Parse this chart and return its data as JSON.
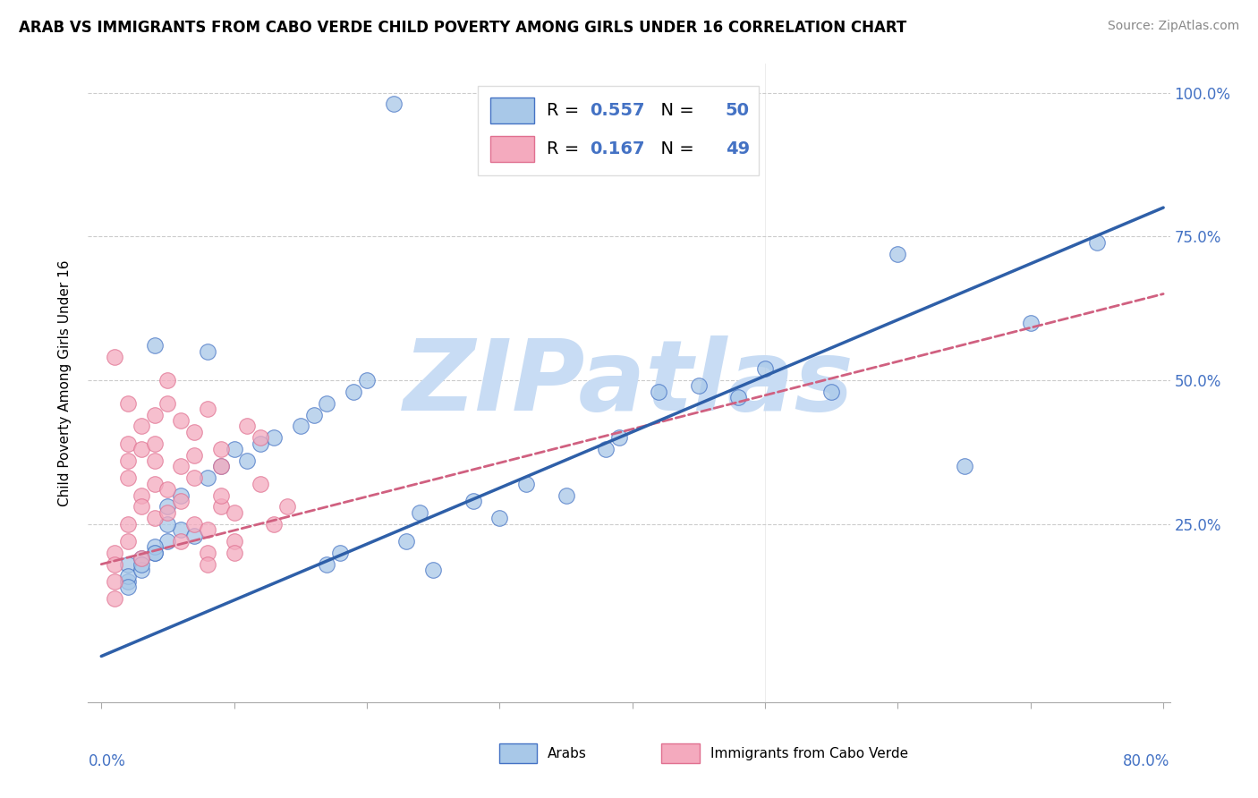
{
  "title": "ARAB VS IMMIGRANTS FROM CABO VERDE CHILD POVERTY AMONG GIRLS UNDER 16 CORRELATION CHART",
  "source": "Source: ZipAtlas.com",
  "ylabel": "Child Poverty Among Girls Under 16",
  "legend_label1": "Arabs",
  "legend_label2": "Immigrants from Cabo Verde",
  "R1": 0.557,
  "N1": 50,
  "R2": 0.167,
  "N2": 49,
  "color_blue": "#A8C8E8",
  "color_pink": "#F4AABE",
  "edge_blue": "#4472C4",
  "edge_pink": "#E07090",
  "line_blue": "#2E5FA8",
  "line_pink": "#D06080",
  "background": "#FFFFFF",
  "watermark_color": "#C8DCF4",
  "arab_x": [
    0.02,
    0.04,
    0.02,
    0.05,
    0.03,
    0.02,
    0.06,
    0.04,
    0.03,
    0.07,
    0.08,
    0.05,
    0.04,
    0.03,
    0.02,
    0.04,
    0.06,
    0.09,
    0.05,
    0.08,
    0.1,
    0.13,
    0.11,
    0.15,
    0.12,
    0.16,
    0.19,
    0.17,
    0.2,
    0.22,
    0.25,
    0.23,
    0.28,
    0.24,
    0.18,
    0.17,
    0.32,
    0.38,
    0.3,
    0.35,
    0.42,
    0.45,
    0.5,
    0.55,
    0.6,
    0.65,
    0.7,
    0.75,
    0.48,
    0.39
  ],
  "arab_y": [
    0.18,
    0.2,
    0.15,
    0.22,
    0.19,
    0.16,
    0.24,
    0.21,
    0.17,
    0.23,
    0.55,
    0.25,
    0.2,
    0.18,
    0.14,
    0.56,
    0.3,
    0.35,
    0.28,
    0.33,
    0.38,
    0.4,
    0.36,
    0.42,
    0.39,
    0.44,
    0.48,
    0.46,
    0.5,
    0.98,
    0.17,
    0.22,
    0.29,
    0.27,
    0.2,
    0.18,
    0.32,
    0.38,
    0.26,
    0.3,
    0.48,
    0.49,
    0.52,
    0.48,
    0.72,
    0.35,
    0.6,
    0.74,
    0.47,
    0.4
  ],
  "cabo_x": [
    0.01,
    0.01,
    0.02,
    0.01,
    0.02,
    0.02,
    0.01,
    0.02,
    0.03,
    0.01,
    0.02,
    0.03,
    0.03,
    0.02,
    0.03,
    0.04,
    0.04,
    0.03,
    0.04,
    0.04,
    0.05,
    0.04,
    0.05,
    0.05,
    0.06,
    0.05,
    0.06,
    0.06,
    0.07,
    0.06,
    0.07,
    0.07,
    0.08,
    0.07,
    0.08,
    0.08,
    0.09,
    0.08,
    0.09,
    0.09,
    0.1,
    0.09,
    0.1,
    0.11,
    0.1,
    0.12,
    0.13,
    0.12,
    0.14
  ],
  "cabo_y": [
    0.2,
    0.54,
    0.46,
    0.18,
    0.39,
    0.25,
    0.15,
    0.22,
    0.3,
    0.12,
    0.36,
    0.28,
    0.19,
    0.33,
    0.42,
    0.36,
    0.26,
    0.38,
    0.32,
    0.44,
    0.27,
    0.39,
    0.46,
    0.31,
    0.43,
    0.5,
    0.22,
    0.35,
    0.41,
    0.29,
    0.25,
    0.37,
    0.2,
    0.33,
    0.18,
    0.45,
    0.28,
    0.24,
    0.3,
    0.38,
    0.22,
    0.35,
    0.27,
    0.42,
    0.2,
    0.32,
    0.25,
    0.4,
    0.28
  ],
  "blue_line_x": [
    0.0,
    0.8
  ],
  "blue_line_y": [
    0.02,
    0.8
  ],
  "pink_line_x": [
    0.0,
    0.8
  ],
  "pink_line_y": [
    0.18,
    0.65
  ],
  "xmin": 0.0,
  "xmax": 0.8,
  "ymin": 0.0,
  "ymax": 1.05,
  "xticks": [
    0.0,
    0.1,
    0.2,
    0.3,
    0.4,
    0.5,
    0.6,
    0.7,
    0.8
  ],
  "ytick_vals": [
    0.25,
    0.5,
    0.75,
    1.0
  ],
  "ytick_labels": [
    "25.0%",
    "50.0%",
    "75.0%",
    "100.0%"
  ]
}
